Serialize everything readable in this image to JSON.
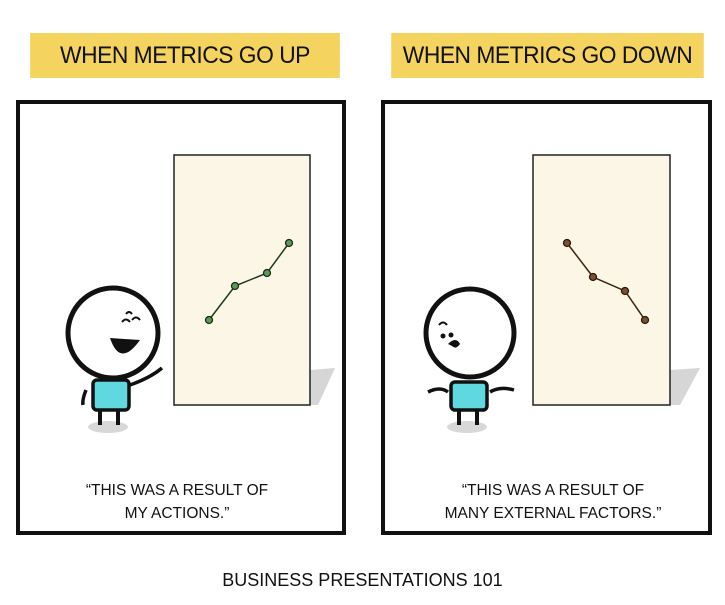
{
  "panels": [
    {
      "header": "WHEN METRICS GO UP",
      "quote_line1": "“THIS WAS A RESULT OF",
      "quote_line2": "MY ACTIONS.”",
      "trend": "up",
      "line_color": "#2f7a32",
      "expression": "laughing"
    },
    {
      "header": "WHEN METRICS GO DOWN",
      "quote_line1": "“THIS WAS A RESULT OF",
      "quote_line2": "MANY EXTERNAL FACTORS.”",
      "trend": "down",
      "line_color": "#5a3a22",
      "expression": "shrugging"
    }
  ],
  "footer": "BUSINESS PRESENTATIONS 101",
  "colors": {
    "header_bg": "#f4d35e",
    "board_bg": "#fcf6e6",
    "shirt": "#5fd8e0"
  }
}
